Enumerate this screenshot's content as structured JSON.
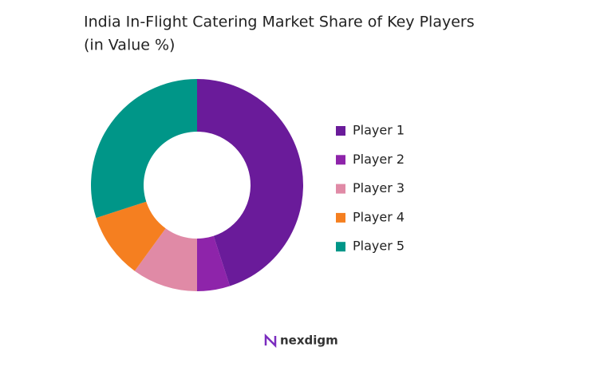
{
  "chart_data": {
    "type": "donut",
    "title": "India In-Flight Catering Market Share of Key Players",
    "subtitle": "(in Value %)",
    "categories": [
      "Player 1",
      "Player 2",
      "Player 3",
      "Player 4",
      "Player 5"
    ],
    "values": [
      45,
      5,
      10,
      10,
      30
    ],
    "colors": [
      "#6a1b9a",
      "#8e24aa",
      "#e08aa6",
      "#f57f20",
      "#009688"
    ],
    "legend": "right"
  },
  "brand": "nexdigm"
}
